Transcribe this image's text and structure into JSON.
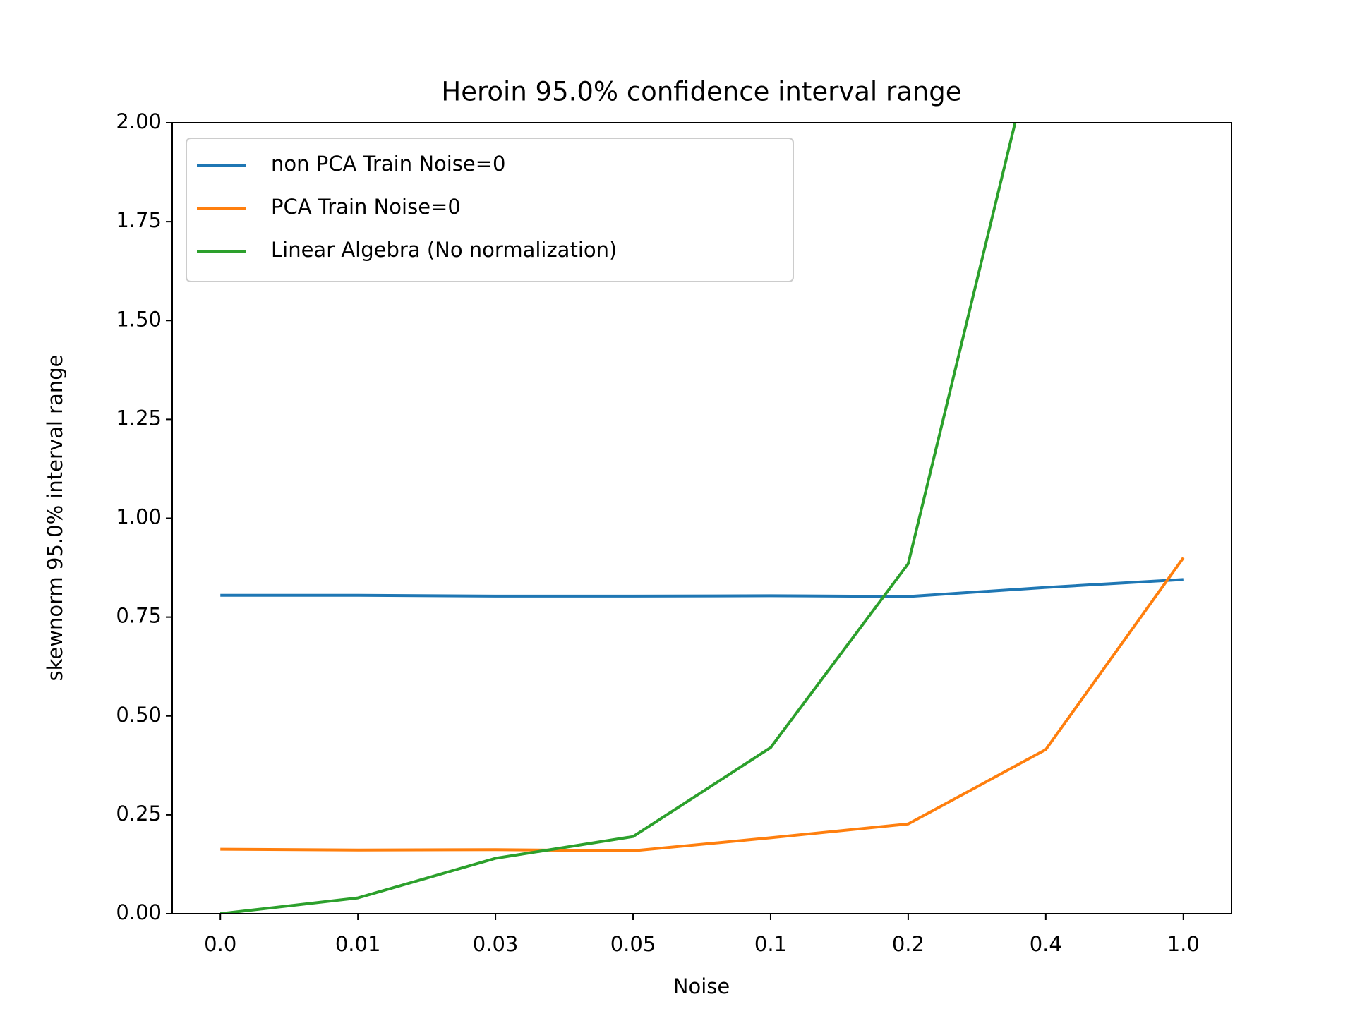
{
  "chart_data": {
    "type": "line",
    "title": "Heroin 95.0% confidence interval range",
    "x_label": "Noise",
    "y_label": "skewnorm 95.0% interval range",
    "categories": [
      "0.0",
      "0.01",
      "0.03",
      "0.05",
      "0.1",
      "0.2",
      "0.4",
      "1.0"
    ],
    "series": [
      {
        "name": "non PCA Train Noise=0",
        "color": "#1f77b4",
        "values": [
          0.805,
          0.805,
          0.803,
          0.803,
          0.804,
          0.802,
          0.825,
          0.845
        ]
      },
      {
        "name": "PCA Train Noise=0",
        "color": "#ff7f0e",
        "values": [
          0.163,
          0.161,
          0.162,
          0.159,
          0.192,
          0.227,
          0.415,
          0.9
        ]
      },
      {
        "name": "Linear Algebra (No normalization)",
        "color": "#2ca02c",
        "values": [
          0.0,
          0.04,
          0.14,
          0.195,
          0.42,
          0.885,
          2.32,
          null
        ]
      }
    ],
    "ylim": [
      0,
      2
    ],
    "yticks": [
      {
        "value": 0,
        "label": "0.00"
      },
      {
        "value": 0.25,
        "label": "0.25"
      },
      {
        "value": 0.5,
        "label": "0.50"
      },
      {
        "value": 0.75,
        "label": "0.75"
      },
      {
        "value": 1,
        "label": "1.00"
      },
      {
        "value": 1.25,
        "label": "1.25"
      },
      {
        "value": 1.5,
        "label": "1.50"
      },
      {
        "value": 1.75,
        "label": "1.75"
      },
      {
        "value": 2,
        "label": "2.00"
      }
    ],
    "legend": "upper left",
    "grid": false
  }
}
